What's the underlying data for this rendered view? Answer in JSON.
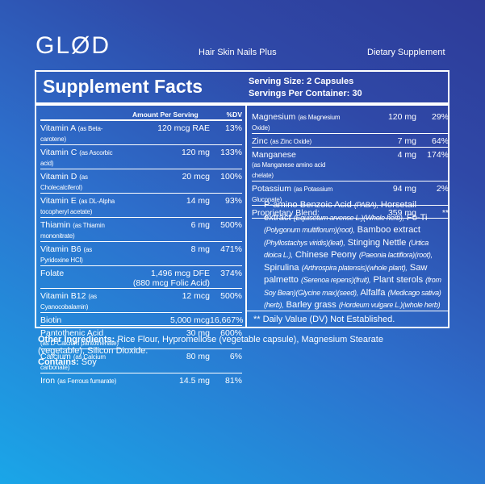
{
  "header": {
    "logo": "GLØD",
    "product": "Hair Skin Nails Plus",
    "category": "Dietary Supplement"
  },
  "facts": {
    "title": "Supplement Facts",
    "serving_size": "Serving Size: 2 Capsules",
    "servings_per_container": "Servings Per Container: 30",
    "columns": [
      "Amount Per Serving",
      "%DV"
    ],
    "left_rows": [
      {
        "name": "Vitamin A",
        "note": "(as Beta-carotene)",
        "amount": "120 mcg RAE",
        "dv": "13%"
      },
      {
        "name": "Vitamin C",
        "note": "(as Ascorbic acid)",
        "amount": "120 mg",
        "dv": "133%"
      },
      {
        "name": "Vitamin D",
        "note": "(as Cholecalciferol)",
        "amount": "20 mcg",
        "dv": "100%"
      },
      {
        "name": "Vitamin E",
        "note": "(as DL-Alpha tocopheryl acetate)",
        "amount": "14 mg",
        "dv": "93%"
      },
      {
        "name": "Thiamin",
        "note": "(as Thiamin mononitrate)",
        "amount": "6 mg",
        "dv": "500%"
      },
      {
        "name": "Vitamin B6",
        "note": "(as Pyridoxine HCl)",
        "amount": "8 mg",
        "dv": "471%"
      },
      {
        "name": "Folate",
        "amount": "1,496 mcg DFE",
        "amount_note": "(880 mcg Folic Acid)",
        "dv": "374%"
      },
      {
        "name": "Vitamin B12",
        "note": "(as Cyanocobalamin)",
        "amount": "12 mcg",
        "dv": "500%"
      },
      {
        "name": "Biotin",
        "amount": "5,000 mcg",
        "dv": "16,667%"
      },
      {
        "name": "Pantothenic Acid",
        "note": "(as D-Calcium pantothenate)",
        "amount": "30 mg",
        "dv": "600%"
      },
      {
        "name": "Calcium",
        "note": "(as Calcium carbonate)",
        "amount": "80 mg",
        "dv": "6%"
      },
      {
        "name": "Iron",
        "note": "(as Ferrous fumarate)",
        "amount": "14.5 mg",
        "dv": "81%"
      }
    ],
    "right_rows": [
      {
        "name": "Magnesium",
        "note": "(as Magnesium Oxide)",
        "amount": "120 mg",
        "dv": "29%"
      },
      {
        "name": "Zinc",
        "note": "(as Zinc Oxide)",
        "amount": "7 mg",
        "dv": "64%"
      },
      {
        "name": "Manganese",
        "note": "(as Manganese amino acid chelate)",
        "amount": "4 mg",
        "dv": "174%"
      },
      {
        "name": "Potassium",
        "note": "(as Potassium Gluconate)",
        "amount": "94 mg",
        "dv": "2%"
      },
      {
        "name": "Proprietary Blend:",
        "amount": "359 mg",
        "dv": "**"
      }
    ],
    "blend_ingredients": [
      {
        "name": "P-amino Benzoic Acid",
        "source": "(PABA),"
      },
      {
        "name": "Horsetail extract",
        "source": "(Equisetum arvense L.)(Whole herb),"
      },
      {
        "name": "Fo-Ti",
        "source": "(Polygonum multiflorum)(root),"
      },
      {
        "name": "Bamboo extract",
        "source": "(Phyllostachys viridis)(leaf),"
      },
      {
        "name": "Stinging Nettle",
        "source": "(Urtica dioica L.),"
      },
      {
        "name": "Chinese Peony",
        "source": "(Paeonia lactiflora)(root),"
      },
      {
        "name": "Spirulina",
        "source": "(Arthrospira platensis)(whole plant),"
      },
      {
        "name": "Saw palmetto",
        "source": "(Serenoa repens)(fruit),"
      },
      {
        "name": "Plant sterols",
        "source": "(from Soy Bean)(Glycine max)(seed),"
      },
      {
        "name": "Alfalfa",
        "source": "(Medicago sativa)(herb),"
      },
      {
        "name": "Barley grass",
        "source": "(Hordeum vulgare L.)(whole herb)"
      }
    ],
    "footnote": "** Daily Value (DV) Not Established."
  },
  "other": {
    "other_label": "Other Ingredients:",
    "other_text": "Rice Flour, Hypromellose (vegetable capsule), Magnesium Stearate (vegetable), Silicon Dioxide.",
    "contains_label": "Contains:",
    "contains_text": "Soy"
  }
}
